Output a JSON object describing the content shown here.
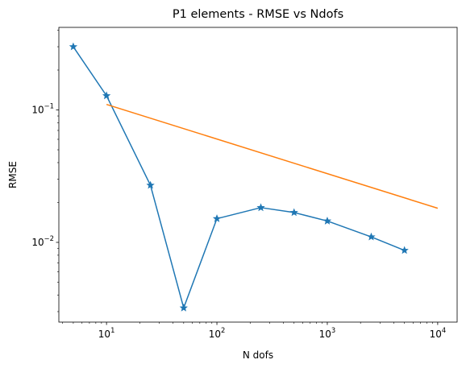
{
  "chart_data": {
    "type": "line",
    "title": "P1 elements - RMSE vs Ndofs",
    "xlabel": "N dofs",
    "ylabel": "RMSE",
    "xscale": "log",
    "yscale": "log",
    "xlim": [
      3.7,
      15000
    ],
    "ylim": [
      0.0025,
      0.42
    ],
    "grid": false,
    "x_ticks": [
      {
        "value": 10,
        "base": "10",
        "exp": "1"
      },
      {
        "value": 100,
        "base": "10",
        "exp": "2"
      },
      {
        "value": 1000,
        "base": "10",
        "exp": "3"
      },
      {
        "value": 10000,
        "base": "10",
        "exp": "4"
      }
    ],
    "y_ticks": [
      {
        "value": 0.01,
        "base": "10",
        "exp": "−2"
      },
      {
        "value": 0.1,
        "base": "10",
        "exp": "−1"
      }
    ],
    "series": [
      {
        "color": "#1f77b4",
        "marker": "star",
        "x": [
          5,
          10,
          25,
          50,
          100,
          250,
          500,
          1000,
          2500,
          5000
        ],
        "y": [
          0.3,
          0.128,
          0.027,
          0.0032,
          0.0151,
          0.0183,
          0.0168,
          0.0145,
          0.011,
          0.0087
        ]
      },
      {
        "color": "#ff7f0e",
        "marker": "none",
        "x": [
          10,
          10000
        ],
        "y": [
          0.11,
          0.0181
        ]
      }
    ]
  }
}
